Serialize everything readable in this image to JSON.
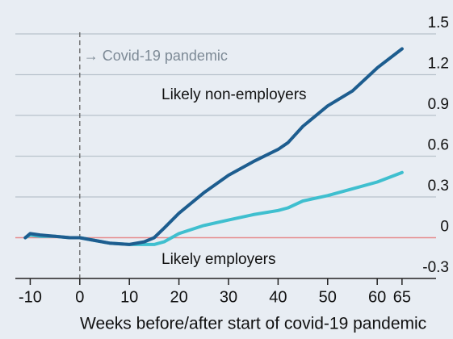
{
  "chart_data": {
    "type": "line",
    "xlabel": "Weeks before/after start of covid-19 pandemic",
    "annotations": [
      "→ Covid-19 pandemic",
      "Likely non-employers",
      "Likely employers"
    ],
    "x": [
      -11,
      -10,
      -8,
      -5,
      -2,
      0,
      3,
      6,
      10,
      13,
      15,
      17,
      20,
      25,
      30,
      35,
      40,
      42,
      45,
      50,
      55,
      60,
      65
    ],
    "series": [
      {
        "name": "Likely non-employers",
        "color": "#1d5d8f",
        "values": [
          0.0,
          0.03,
          0.02,
          0.01,
          0.0,
          0.0,
          -0.02,
          -0.04,
          -0.05,
          -0.03,
          0.0,
          0.07,
          0.18,
          0.33,
          0.46,
          0.56,
          0.65,
          0.7,
          0.82,
          0.97,
          1.08,
          1.25,
          1.39
        ]
      },
      {
        "name": "Likely employers",
        "color": "#3fbfcf",
        "values": [
          0.0,
          0.02,
          0.01,
          0.01,
          0.0,
          0.0,
          -0.02,
          -0.04,
          -0.05,
          -0.05,
          -0.05,
          -0.03,
          0.03,
          0.09,
          0.13,
          0.17,
          0.2,
          0.22,
          0.27,
          0.31,
          0.36,
          0.41,
          0.48
        ]
      }
    ],
    "xlim": [
      -13,
      66
    ],
    "ylim": [
      -0.3,
      1.5
    ],
    "xticks": [
      -10,
      0,
      10,
      20,
      30,
      40,
      50,
      60,
      65
    ],
    "yticks": [
      1.5,
      1.2,
      0.9,
      0.6,
      0.3,
      0,
      -0.3
    ],
    "zero_line_color": "#e58b8b",
    "grid": true
  }
}
